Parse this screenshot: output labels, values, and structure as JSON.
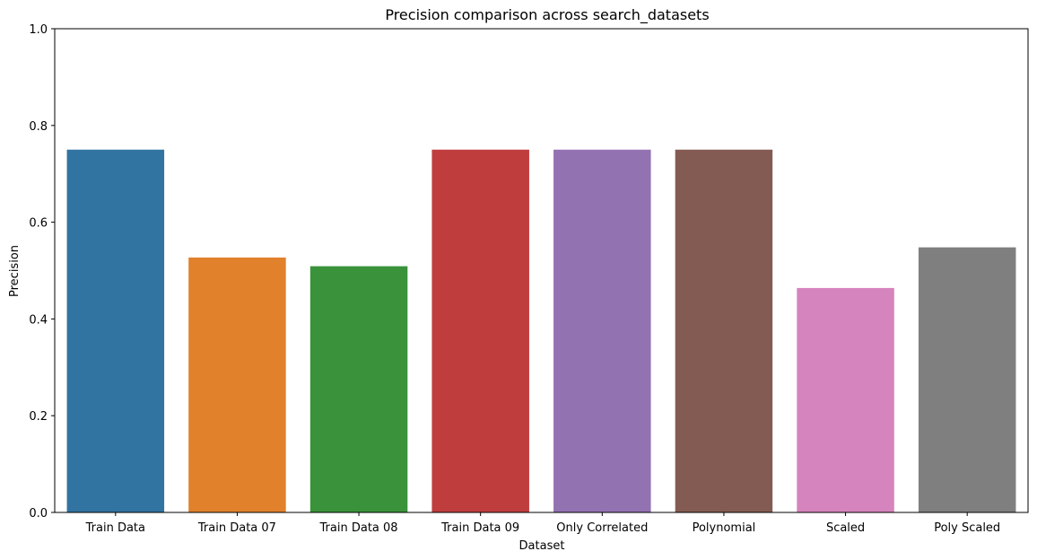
{
  "chart_data": {
    "type": "bar",
    "title": "Precision comparison across search_datasets",
    "xlabel": "Dataset",
    "ylabel": "Precision",
    "ylim": [
      0,
      1.0
    ],
    "yticks": [
      "0.0",
      "0.2",
      "0.4",
      "0.6",
      "0.8",
      "1.0"
    ],
    "grid": false,
    "categories": [
      "Train Data",
      "Train Data 07",
      "Train Data 08",
      "Train Data 09",
      "Only Correlated",
      "Polynomial",
      "Scaled",
      "Poly Scaled"
    ],
    "values": [
      0.75,
      0.527,
      0.509,
      0.75,
      0.75,
      0.75,
      0.464,
      0.548
    ],
    "colors": [
      "#3274a1",
      "#e1812c",
      "#3a923a",
      "#c03d3e",
      "#9372b2",
      "#845b53",
      "#d684bd",
      "#7f7f7f"
    ]
  }
}
